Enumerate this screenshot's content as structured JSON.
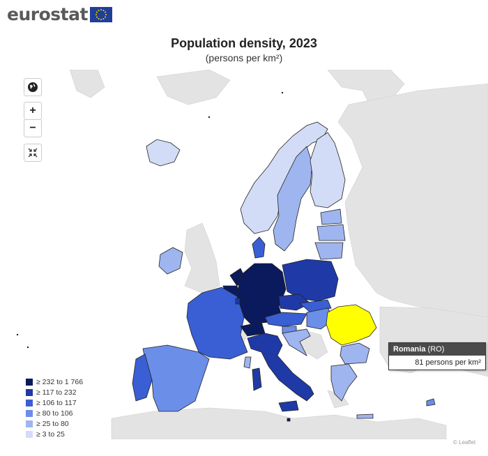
{
  "logo": {
    "text": "eurostat"
  },
  "title": "Population density, 2023",
  "subtitle": "(persons per km²)",
  "controls": {
    "zoom_in": "+",
    "zoom_out": "−"
  },
  "legend": [
    {
      "label": "≥ 232 to 1 766",
      "color": "#0b1a5c"
    },
    {
      "label": "≥ 117 to 232",
      "color": "#1f3aa6"
    },
    {
      "label": "≥ 106 to 117",
      "color": "#3a5fd4"
    },
    {
      "label": "≥ 80 to 106",
      "color": "#6b8ee8"
    },
    {
      "label": "≥ 25 to 80",
      "color": "#9fb5ef"
    },
    {
      "label": "≥ 3 to 25",
      "color": "#d2dcf6"
    }
  ],
  "highlight": {
    "country": "Romania",
    "code": "(RO)",
    "value": "81 persons per km²",
    "color": "#ffff00"
  },
  "colors": {
    "sea": "#ffffff",
    "non_eu": "#e3e3e3",
    "outline": "#222222"
  },
  "credit": "© Leaflet"
}
